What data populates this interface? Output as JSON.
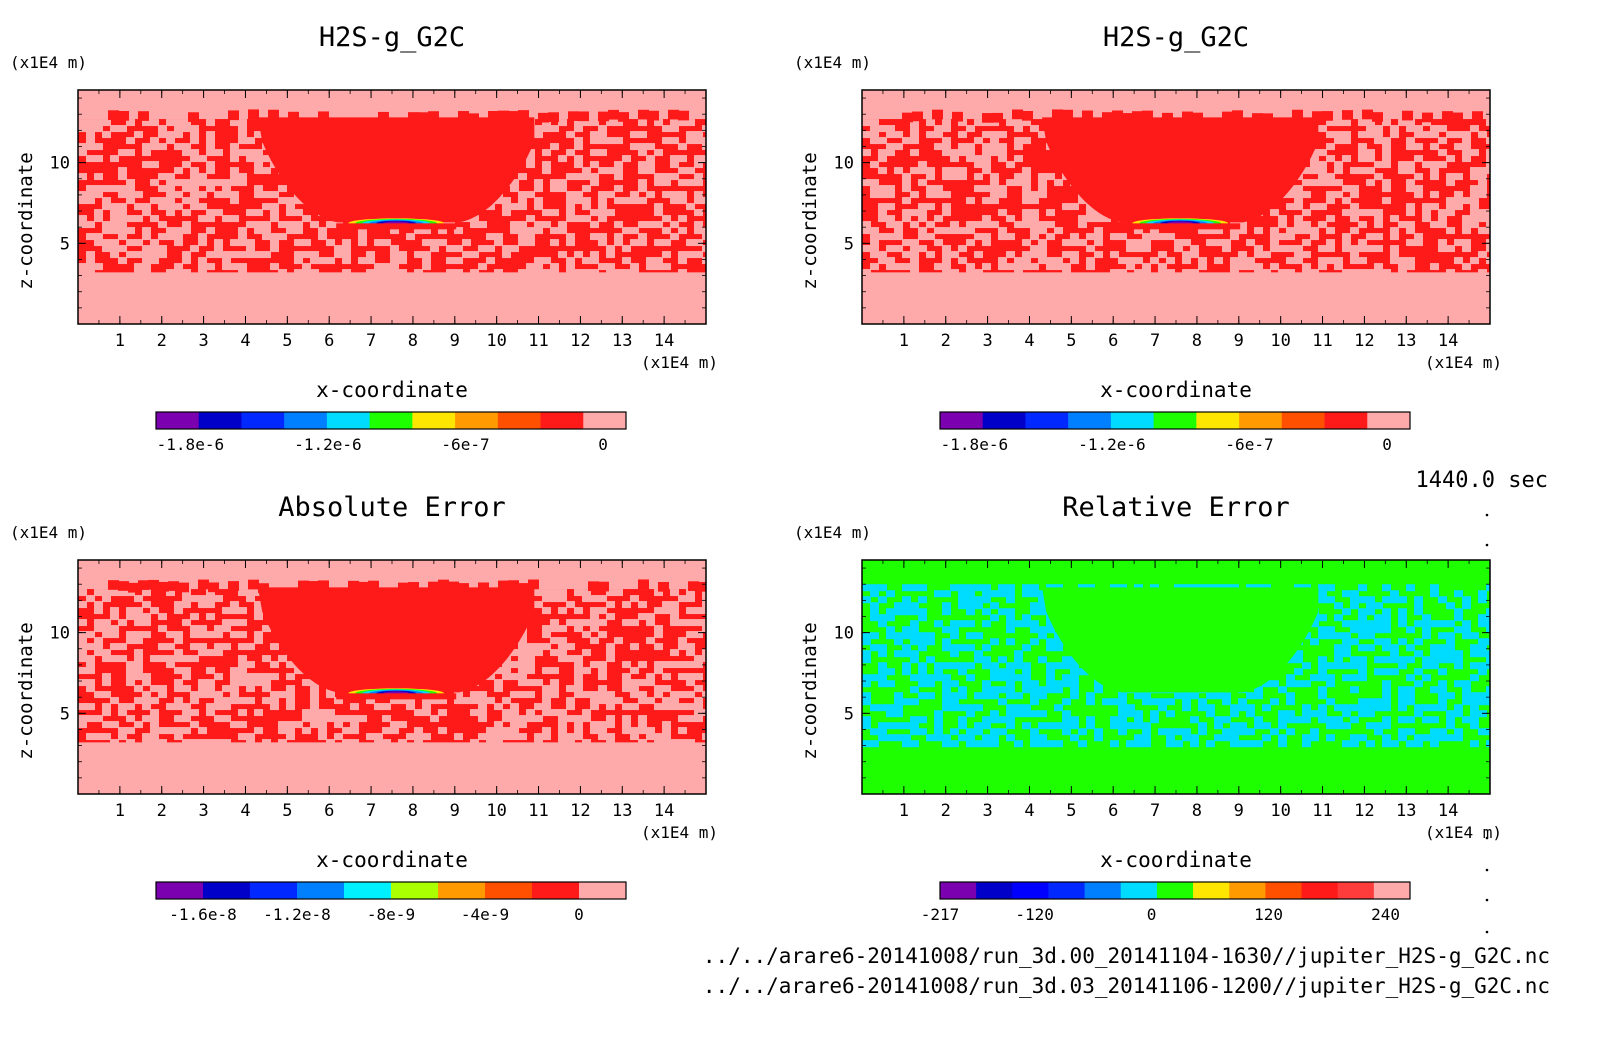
{
  "timestamp": "1440.0 sec",
  "files": [
    "../../arare6-20141008/run_3d.00_20141104-1630//jupiter_H2S-g_G2C.nc",
    "../../arare6-20141008/run_3d.03_20141106-1200//jupiter_H2S-g_G2C.nc"
  ],
  "chart_data": [
    {
      "type": "heatmap",
      "title": "H2S-g_G2C",
      "xlabel": "x-coordinate",
      "ylabel": "z-coordinate",
      "x_unit": "(x1E4 m)",
      "y_unit": "(x1E4 m)",
      "x_ticks": [
        1,
        2,
        3,
        4,
        5,
        6,
        7,
        8,
        9,
        10,
        11,
        12,
        13,
        14
      ],
      "y_ticks": [
        5,
        10
      ],
      "xlim": [
        0,
        15
      ],
      "ylim": [
        0,
        14.5
      ],
      "pattern": "field",
      "colors": {
        "background": "#ffaaaa",
        "fill": "#ff1a1a",
        "speckle": "#ffaaaa"
      },
      "colorbar": {
        "colors": [
          "#7a00b0",
          "#0000c8",
          "#0028ff",
          "#0080ff",
          "#00dcff",
          "#1eff00",
          "#ffe600",
          "#ff9b00",
          "#ff5000",
          "#ff1a1a",
          "#ffaaaa"
        ],
        "tick_labels": [
          "-1.8e-6",
          "-1.2e-6",
          "-6e-7",
          "0"
        ],
        "tick_values": [
          -1.8e-06,
          -1.2e-06,
          -6e-07,
          0
        ],
        "min": -1.95e-06,
        "max": 1e-07
      }
    },
    {
      "type": "heatmap",
      "title": "H2S-g_G2C",
      "xlabel": "x-coordinate",
      "ylabel": "z-coordinate",
      "x_unit": "(x1E4 m)",
      "y_unit": "(x1E4 m)",
      "x_ticks": [
        1,
        2,
        3,
        4,
        5,
        6,
        7,
        8,
        9,
        10,
        11,
        12,
        13,
        14
      ],
      "y_ticks": [
        5,
        10
      ],
      "xlim": [
        0,
        15
      ],
      "ylim": [
        0,
        14.5
      ],
      "pattern": "field",
      "colors": {
        "background": "#ffaaaa",
        "fill": "#ff1a1a",
        "speckle": "#ffaaaa"
      },
      "colorbar": {
        "colors": [
          "#7a00b0",
          "#0000c8",
          "#0028ff",
          "#0080ff",
          "#00dcff",
          "#1eff00",
          "#ffe600",
          "#ff9b00",
          "#ff5000",
          "#ff1a1a",
          "#ffaaaa"
        ],
        "tick_labels": [
          "-1.8e-6",
          "-1.2e-6",
          "-6e-7",
          "0"
        ],
        "tick_values": [
          -1.8e-06,
          -1.2e-06,
          -6e-07,
          0
        ],
        "min": -1.95e-06,
        "max": 1e-07
      }
    },
    {
      "type": "heatmap",
      "title": "Absolute Error",
      "xlabel": "x-coordinate",
      "ylabel": "z-coordinate",
      "x_unit": "(x1E4 m)",
      "y_unit": "(x1E4 m)",
      "x_ticks": [
        1,
        2,
        3,
        4,
        5,
        6,
        7,
        8,
        9,
        10,
        11,
        12,
        13,
        14
      ],
      "y_ticks": [
        5,
        10
      ],
      "xlim": [
        0,
        15
      ],
      "ylim": [
        0,
        14.5
      ],
      "pattern": "field",
      "colors": {
        "background": "#ffaaaa",
        "fill": "#ff1a1a",
        "speckle": "#ffaaaa"
      },
      "colorbar": {
        "colors": [
          "#7a00b0",
          "#0000c8",
          "#0028ff",
          "#0080ff",
          "#00f0ff",
          "#aaff00",
          "#ff9b00",
          "#ff5000",
          "#ff1a1a",
          "#ffaaaa"
        ],
        "tick_labels": [
          "-1.6e-8",
          "-1.2e-8",
          "-8e-9",
          "-4e-9",
          "0"
        ],
        "tick_values": [
          -1.6e-08,
          -1.2e-08,
          -8e-09,
          -4e-09,
          0
        ],
        "min": -1.8e-08,
        "max": 2e-09
      }
    },
    {
      "type": "heatmap",
      "title": "Relative Error",
      "xlabel": "x-coordinate",
      "ylabel": "z-coordinate",
      "x_unit": "(x1E4 m)",
      "y_unit": "(x1E4 m)",
      "x_ticks": [
        1,
        2,
        3,
        4,
        5,
        6,
        7,
        8,
        9,
        10,
        11,
        12,
        13,
        14
      ],
      "y_ticks": [
        5,
        10
      ],
      "xlim": [
        0,
        15
      ],
      "ylim": [
        0,
        14.5
      ],
      "pattern": "relative",
      "colors": {
        "background": "#1eff00",
        "fill": "#1eff00",
        "speckle": "#00dcff"
      },
      "colorbar": {
        "colors": [
          "#7a00b0",
          "#0000c8",
          "#0000ff",
          "#0028ff",
          "#0080ff",
          "#00dcff",
          "#1eff00",
          "#ffe600",
          "#ff9b00",
          "#ff5000",
          "#ff1a1a",
          "#ff3c3c",
          "#ffaaaa"
        ],
        "tick_labels": [
          "-217",
          "-120",
          "0",
          "120",
          "240"
        ],
        "tick_values": [
          -217,
          -120,
          0,
          120,
          240
        ],
        "min": -217,
        "max": 265
      }
    }
  ]
}
